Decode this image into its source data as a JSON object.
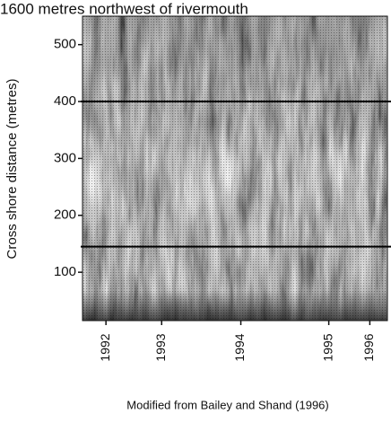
{
  "chart_data": {
    "type": "timestack",
    "title": "1600 metres northwest of rivermouth",
    "y_label": "Cross shore distance (metres)",
    "caption": "Modified  from Bailey and Shand (1996)",
    "xlim": [
      1991.5,
      1996.7
    ],
    "xticks": [
      {
        "value": 1991.9,
        "label": "1992"
      },
      {
        "value": 1992.85,
        "label": "1993"
      },
      {
        "value": 1994.2,
        "label": "1994"
      },
      {
        "value": 1995.7,
        "label": "1995"
      },
      {
        "value": 1996.4,
        "label": "1996"
      }
    ],
    "ylim": [
      15,
      550
    ],
    "yticks": [
      100,
      200,
      300,
      400,
      500
    ],
    "hlines": [
      400,
      145
    ]
  }
}
